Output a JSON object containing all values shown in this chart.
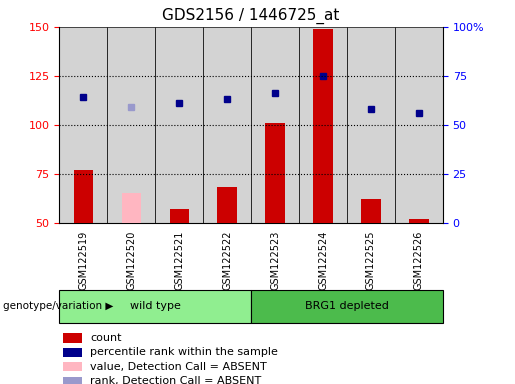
{
  "title": "GDS2156 / 1446725_at",
  "samples": [
    "GSM122519",
    "GSM122520",
    "GSM122521",
    "GSM122522",
    "GSM122523",
    "GSM122524",
    "GSM122525",
    "GSM122526"
  ],
  "group_boundaries": [
    {
      "start": 0,
      "end": 3,
      "name": "wild type",
      "color": "#90EE90"
    },
    {
      "start": 4,
      "end": 7,
      "name": "BRG1 depleted",
      "color": "#4CBB4C"
    }
  ],
  "bar_values": [
    77,
    65,
    57,
    68,
    101,
    149,
    62,
    52
  ],
  "bar_absent": [
    false,
    true,
    false,
    false,
    false,
    false,
    false,
    false
  ],
  "dot_values": [
    114,
    109,
    111,
    113,
    116,
    125,
    108,
    106
  ],
  "dot_absent": [
    false,
    true,
    false,
    false,
    false,
    false,
    false,
    false
  ],
  "ylim_left": [
    50,
    150
  ],
  "ylim_right": [
    0,
    100
  ],
  "yticks_left": [
    50,
    75,
    100,
    125,
    150
  ],
  "yticks_right": [
    0,
    25,
    50,
    75,
    100
  ],
  "ytick_labels_right": [
    "0",
    "25",
    "50",
    "75",
    "100%"
  ],
  "bar_color_present": "#CC0000",
  "bar_color_absent": "#FFB6C1",
  "dot_color_present": "#00008B",
  "dot_color_absent": "#9999CC",
  "grid_lines": [
    75,
    100,
    125
  ],
  "grid_color": "black",
  "plot_bg": "#FFFFFF",
  "cell_bg": "#D3D3D3",
  "title_fontsize": 11,
  "legend_items": [
    {
      "label": "count",
      "color": "#CC0000"
    },
    {
      "label": "percentile rank within the sample",
      "color": "#00008B"
    },
    {
      "label": "value, Detection Call = ABSENT",
      "color": "#FFB6C1"
    },
    {
      "label": "rank, Detection Call = ABSENT",
      "color": "#9999CC"
    }
  ],
  "xlabel_bottom": "genotype/variation"
}
